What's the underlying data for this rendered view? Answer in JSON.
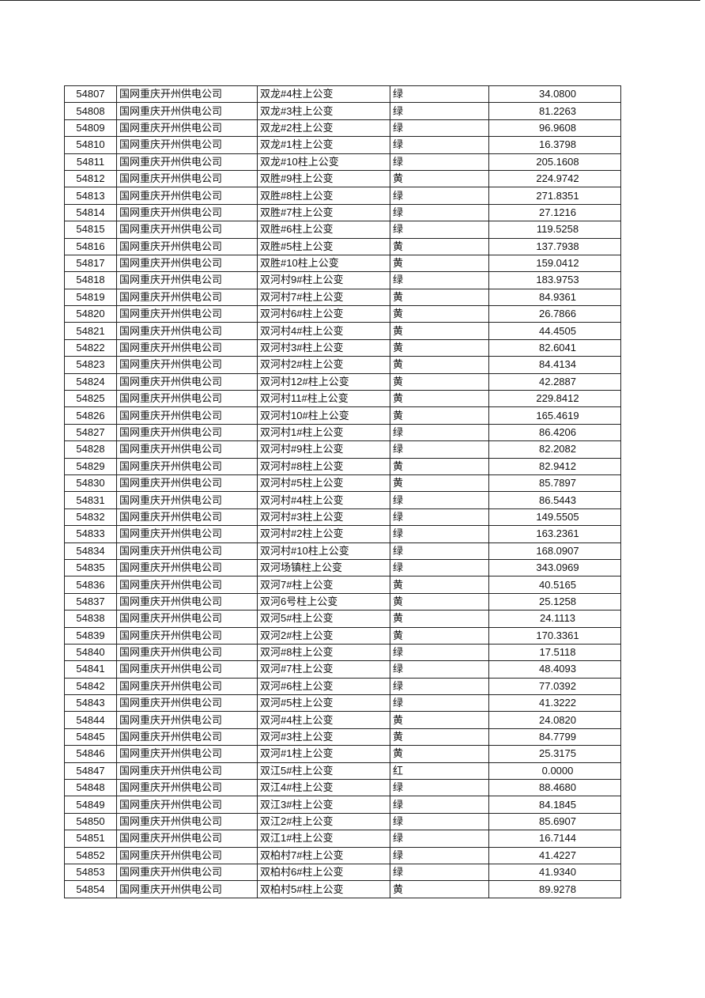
{
  "table": {
    "rows": [
      [
        "54807",
        "国网重庆开州供电公司",
        "双龙#4柱上公变",
        "绿",
        "34.0800"
      ],
      [
        "54808",
        "国网重庆开州供电公司",
        "双龙#3柱上公变",
        "绿",
        "81.2263"
      ],
      [
        "54809",
        "国网重庆开州供电公司",
        "双龙#2柱上公变",
        "绿",
        "96.9608"
      ],
      [
        "54810",
        "国网重庆开州供电公司",
        "双龙#1柱上公变",
        "绿",
        "16.3798"
      ],
      [
        "54811",
        "国网重庆开州供电公司",
        "双龙#10柱上公变",
        "绿",
        "205.1608"
      ],
      [
        "54812",
        "国网重庆开州供电公司",
        "双胜#9柱上公变",
        "黄",
        "224.9742"
      ],
      [
        "54813",
        "国网重庆开州供电公司",
        "双胜#8柱上公变",
        "绿",
        "271.8351"
      ],
      [
        "54814",
        "国网重庆开州供电公司",
        "双胜#7柱上公变",
        "绿",
        "27.1216"
      ],
      [
        "54815",
        "国网重庆开州供电公司",
        "双胜#6柱上公变",
        "绿",
        "119.5258"
      ],
      [
        "54816",
        "国网重庆开州供电公司",
        "双胜#5柱上公变",
        "黄",
        "137.7938"
      ],
      [
        "54817",
        "国网重庆开州供电公司",
        "双胜#10柱上公变",
        "黄",
        "159.0412"
      ],
      [
        "54818",
        "国网重庆开州供电公司",
        "双河村9#柱上公变",
        "绿",
        "183.9753"
      ],
      [
        "54819",
        "国网重庆开州供电公司",
        "双河村7#柱上公变",
        "黄",
        "84.9361"
      ],
      [
        "54820",
        "国网重庆开州供电公司",
        "双河村6#柱上公变",
        "黄",
        "26.7866"
      ],
      [
        "54821",
        "国网重庆开州供电公司",
        "双河村4#柱上公变",
        "黄",
        "44.4505"
      ],
      [
        "54822",
        "国网重庆开州供电公司",
        "双河村3#柱上公变",
        "黄",
        "82.6041"
      ],
      [
        "54823",
        "国网重庆开州供电公司",
        "双河村2#柱上公变",
        "黄",
        "84.4134"
      ],
      [
        "54824",
        "国网重庆开州供电公司",
        "双河村12#柱上公变",
        "黄",
        "42.2887"
      ],
      [
        "54825",
        "国网重庆开州供电公司",
        "双河村11#柱上公变",
        "黄",
        "229.8412"
      ],
      [
        "54826",
        "国网重庆开州供电公司",
        "双河村10#柱上公变",
        "黄",
        "165.4619"
      ],
      [
        "54827",
        "国网重庆开州供电公司",
        "双河村1#柱上公变",
        "绿",
        "86.4206"
      ],
      [
        "54828",
        "国网重庆开州供电公司",
        "双河村#9柱上公变",
        "绿",
        "82.2082"
      ],
      [
        "54829",
        "国网重庆开州供电公司",
        "双河村#8柱上公变",
        "黄",
        "82.9412"
      ],
      [
        "54830",
        "国网重庆开州供电公司",
        "双河村#5柱上公变",
        "黄",
        "85.7897"
      ],
      [
        "54831",
        "国网重庆开州供电公司",
        "双河村#4柱上公变",
        "绿",
        "86.5443"
      ],
      [
        "54832",
        "国网重庆开州供电公司",
        "双河村#3柱上公变",
        "绿",
        "149.5505"
      ],
      [
        "54833",
        "国网重庆开州供电公司",
        "双河村#2柱上公变",
        "绿",
        "163.2361"
      ],
      [
        "54834",
        "国网重庆开州供电公司",
        "双河村#10柱上公变",
        "绿",
        "168.0907"
      ],
      [
        "54835",
        "国网重庆开州供电公司",
        "双河场镇柱上公变",
        "绿",
        "343.0969"
      ],
      [
        "54836",
        "国网重庆开州供电公司",
        "双河7#柱上公变",
        "黄",
        "40.5165"
      ],
      [
        "54837",
        "国网重庆开州供电公司",
        "双河6号柱上公变",
        "黄",
        "25.1258"
      ],
      [
        "54838",
        "国网重庆开州供电公司",
        "双河5#柱上公变",
        "黄",
        "24.1113"
      ],
      [
        "54839",
        "国网重庆开州供电公司",
        "双河2#柱上公变",
        "黄",
        "170.3361"
      ],
      [
        "54840",
        "国网重庆开州供电公司",
        "双河#8柱上公变",
        "绿",
        "17.5118"
      ],
      [
        "54841",
        "国网重庆开州供电公司",
        "双河#7柱上公变",
        "绿",
        "48.4093"
      ],
      [
        "54842",
        "国网重庆开州供电公司",
        "双河#6柱上公变",
        "绿",
        "77.0392"
      ],
      [
        "54843",
        "国网重庆开州供电公司",
        "双河#5柱上公变",
        "绿",
        "41.3222"
      ],
      [
        "54844",
        "国网重庆开州供电公司",
        "双河#4柱上公变",
        "黄",
        "24.0820"
      ],
      [
        "54845",
        "国网重庆开州供电公司",
        "双河#3柱上公变",
        "黄",
        "84.7799"
      ],
      [
        "54846",
        "国网重庆开州供电公司",
        "双河#1柱上公变",
        "黄",
        "25.3175"
      ],
      [
        "54847",
        "国网重庆开州供电公司",
        "双江5#柱上公变",
        "红",
        "0.0000"
      ],
      [
        "54848",
        "国网重庆开州供电公司",
        "双江4#柱上公变",
        "绿",
        "88.4680"
      ],
      [
        "54849",
        "国网重庆开州供电公司",
        "双江3#柱上公变",
        "绿",
        "84.1845"
      ],
      [
        "54850",
        "国网重庆开州供电公司",
        "双江2#柱上公变",
        "绿",
        "85.6907"
      ],
      [
        "54851",
        "国网重庆开州供电公司",
        "双江1#柱上公变",
        "绿",
        "16.7144"
      ],
      [
        "54852",
        "国网重庆开州供电公司",
        "双柏村7#柱上公变",
        "绿",
        "41.4227"
      ],
      [
        "54853",
        "国网重庆开州供电公司",
        "双柏村6#柱上公变",
        "绿",
        "41.9340"
      ],
      [
        "54854",
        "国网重庆开州供电公司",
        "双柏村5#柱上公变",
        "黄",
        "89.9278"
      ]
    ]
  }
}
